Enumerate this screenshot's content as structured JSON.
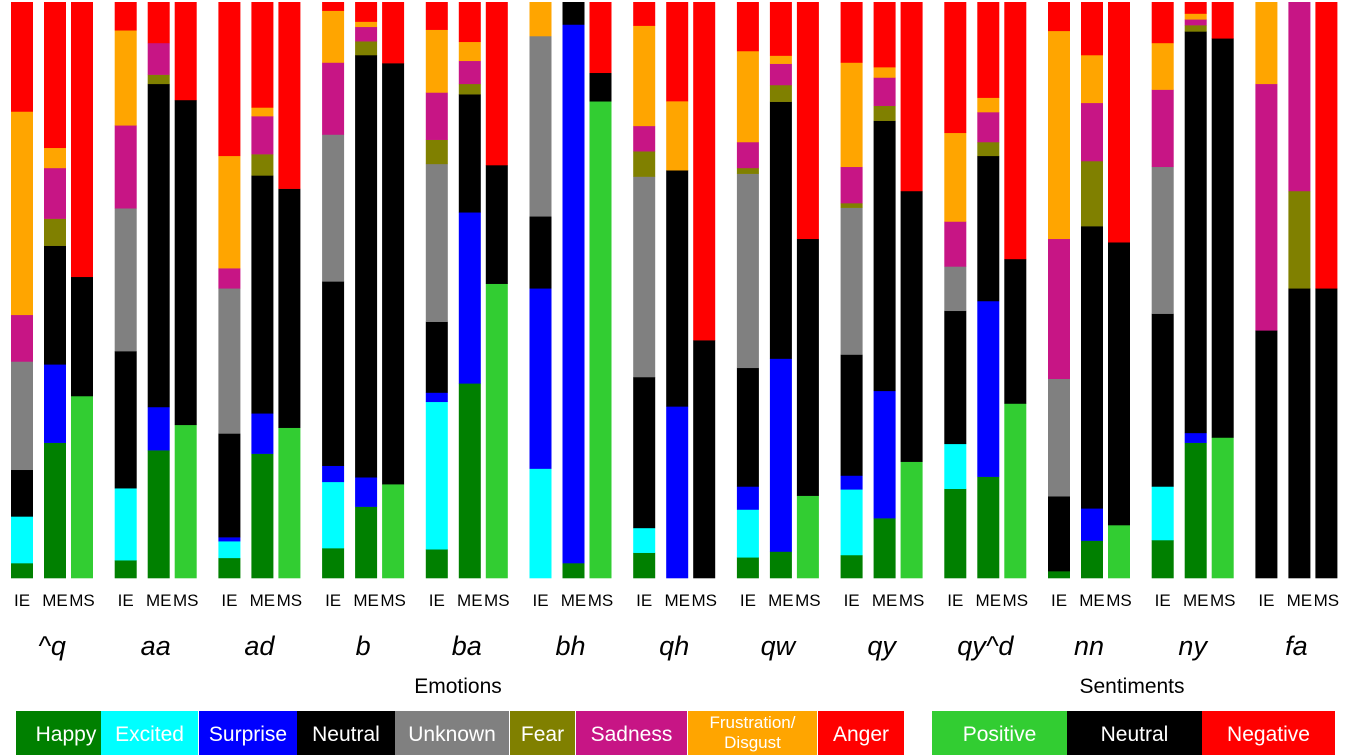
{
  "chart_data": {
    "type": "bar",
    "stacked": true,
    "normalized": true,
    "xlabel_emotions": "Emotions",
    "xlabel_sentiments": "Sentiments",
    "groups": [
      "^q",
      "aa",
      "ad",
      "b",
      "ba",
      "bh",
      "qh",
      "qw",
      "qy",
      "qy^d",
      "nn",
      "ny",
      "fa"
    ],
    "bar_labels": [
      "IE",
      "ME",
      "MS"
    ],
    "emotion_categories": [
      {
        "key": "happy",
        "label": "Happy",
        "color": "#008000"
      },
      {
        "key": "excited",
        "label": "Excited",
        "color": "#00FFFF"
      },
      {
        "key": "surprise",
        "label": "Surprise",
        "color": "#0000FF"
      },
      {
        "key": "neutral",
        "label": "Neutral",
        "color": "#000000"
      },
      {
        "key": "unknown",
        "label": "Unknown",
        "color": "#808080"
      },
      {
        "key": "fear",
        "label": "Fear",
        "color": "#808000"
      },
      {
        "key": "sadness",
        "label": "Sadness",
        "color": "#C71585"
      },
      {
        "key": "frustration",
        "label": "Frustration/\nDisgust",
        "color": "#FFA500"
      },
      {
        "key": "anger",
        "label": "Anger",
        "color": "#FF0000"
      }
    ],
    "sentiment_categories": [
      {
        "key": "positive",
        "label": "Positive",
        "color": "#32CD32"
      },
      {
        "key": "neutral",
        "label": "Neutral",
        "color": "#000000"
      },
      {
        "key": "negative",
        "label": "Negative",
        "color": "#FF0000"
      }
    ],
    "data": {
      "IE": [
        [
          0.026,
          0.081,
          0,
          0.081,
          0.188,
          0,
          0.081,
          0.353,
          0.19
        ],
        [
          0.031,
          0.125,
          0,
          0.238,
          0.248,
          0,
          0.144,
          0.165,
          0.049
        ],
        [
          0.035,
          0.029,
          0.007,
          0.18,
          0.252,
          0,
          0.035,
          0.195,
          0.267
        ],
        [
          0.052,
          0.115,
          0.028,
          0.32,
          0.255,
          0,
          0.125,
          0.09,
          0.015
        ],
        [
          0.05,
          0.256,
          0.016,
          0.123,
          0.274,
          0.042,
          0.082,
          0.109,
          0.048
        ],
        [
          0,
          0.19,
          0.313,
          0.125,
          0.313,
          0,
          0,
          0.059,
          0
        ],
        [
          0.044,
          0.043,
          0,
          0.262,
          0.348,
          0.044,
          0.044,
          0.174,
          0.041
        ],
        [
          0.036,
          0.083,
          0.04,
          0.206,
          0.337,
          0.01,
          0.045,
          0.158,
          0.085
        ],
        [
          0.04,
          0.114,
          0.024,
          0.21,
          0.255,
          0.008,
          0.063,
          0.181,
          0.105
        ],
        [
          0.155,
          0.078,
          0,
          0.231,
          0.077,
          0,
          0.078,
          0.154,
          0.227
        ],
        [
          0.012,
          0,
          0,
          0.13,
          0.204,
          0,
          0.243,
          0.361,
          0.05
        ],
        [
          0.066,
          0.093,
          0,
          0.3,
          0.255,
          0,
          0.134,
          0.081,
          0.071
        ],
        [
          0,
          0,
          0,
          0.43,
          0,
          0,
          0.428,
          0.142,
          0
        ]
      ],
      "ME": [
        [
          0.235,
          0,
          0.136,
          0.206,
          0,
          0.047,
          0.088,
          0.035,
          0.253
        ],
        [
          0.222,
          0,
          0.075,
          0.561,
          0,
          0.016,
          0.055,
          0,
          0.071
        ],
        [
          0.216,
          0,
          0.07,
          0.413,
          0,
          0.037,
          0.066,
          0.015,
          0.183
        ],
        [
          0.124,
          0,
          0.051,
          0.733,
          0,
          0.024,
          0.025,
          0.009,
          0.034
        ],
        [
          0.338,
          0,
          0.297,
          0.205,
          0,
          0.018,
          0.04,
          0.033,
          0.069
        ],
        [
          0.026,
          0,
          0.935,
          0.039,
          0,
          0,
          0,
          0,
          0
        ],
        [
          0,
          0,
          0.298,
          0.41,
          0,
          0,
          0,
          0.12,
          0.172
        ],
        [
          0.046,
          0,
          0.335,
          0.446,
          0,
          0.029,
          0.037,
          0.014,
          0.093
        ],
        [
          0.104,
          0,
          0.221,
          0.469,
          0,
          0.026,
          0.049,
          0.018,
          0.113
        ],
        [
          0.176,
          0,
          0.305,
          0.252,
          0,
          0.024,
          0.052,
          0.025,
          0.166
        ],
        [
          0.065,
          0,
          0.056,
          0.49,
          0,
          0.113,
          0.101,
          0.083,
          0.092
        ],
        [
          0.235,
          0,
          0.017,
          0.697,
          0,
          0.011,
          0.01,
          0.01,
          0.02
        ],
        [
          0,
          0,
          0,
          0.503,
          0,
          0.169,
          0.328,
          0,
          0
        ]
      ],
      "MS": [
        [
          0.316,
          0,
          0,
          0.207,
          0,
          0,
          0,
          0,
          0.477
        ],
        [
          0.266,
          0,
          0,
          0.564,
          0,
          0,
          0,
          0,
          0.17
        ],
        [
          0.261,
          0,
          0,
          0.415,
          0,
          0,
          0,
          0,
          0.324
        ],
        [
          0.163,
          0,
          0,
          0.731,
          0,
          0,
          0,
          0,
          0.106
        ],
        [
          0.511,
          0,
          0,
          0.206,
          0,
          0,
          0,
          0,
          0.283
        ],
        [
          0.836,
          0,
          0,
          0.05,
          0,
          0,
          0,
          0,
          0.124
        ],
        [
          0,
          0,
          0,
          0.413,
          0,
          0,
          0,
          0,
          0.587
        ],
        [
          0.143,
          0,
          0,
          0.446,
          0,
          0,
          0,
          0,
          0.411
        ],
        [
          0.202,
          0,
          0,
          0.47,
          0,
          0,
          0,
          0,
          0.328
        ],
        [
          0.303,
          0,
          0,
          0.251,
          0,
          0,
          0,
          0,
          0.446
        ],
        [
          0.092,
          0,
          0,
          0.491,
          0,
          0,
          0,
          0,
          0.417
        ],
        [
          0.244,
          0,
          0,
          0.693,
          0,
          0,
          0,
          0,
          0.063
        ],
        [
          0,
          0,
          0,
          0.503,
          0,
          0,
          0,
          0,
          0.497
        ]
      ]
    }
  }
}
